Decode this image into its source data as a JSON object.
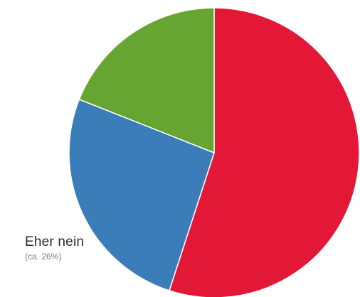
{
  "chart_data": {
    "type": "pie",
    "start_angle_deg": -90,
    "direction": "clockwise",
    "slices": [
      {
        "value": 55,
        "color": "#e31837"
      },
      {
        "value": 26,
        "label": "Eher nein",
        "value_label": "(ca. 26%)",
        "color": "#3a7db9"
      },
      {
        "value": 19,
        "color": "#67a533"
      }
    ]
  }
}
